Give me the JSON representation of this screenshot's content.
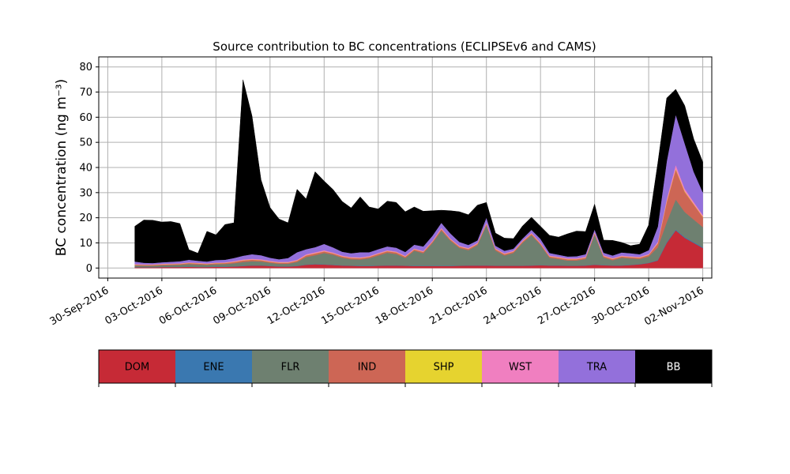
{
  "chart_data": {
    "type": "area",
    "stacked": true,
    "title": "Source contribution to BC concentrations (ECLIPSEv6 and CAMS)",
    "ylabel": "BC concentration (ng m⁻³)",
    "xlabel": "",
    "xlim": [
      "2016-09-29T12:00",
      "2016-11-02T12:00"
    ],
    "ylim": [
      -4,
      84
    ],
    "grid": true,
    "x_ticks": [
      "30-Sep-2016",
      "03-Oct-2016",
      "06-Oct-2016",
      "09-Oct-2016",
      "12-Oct-2016",
      "15-Oct-2016",
      "18-Oct-2016",
      "21-Oct-2016",
      "24-Oct-2016",
      "27-Oct-2016",
      "30-Oct-2016",
      "02-Nov-2016"
    ],
    "x_tick_dates": [
      "2016-09-30",
      "2016-10-03",
      "2016-10-06",
      "2016-10-09",
      "2016-10-12",
      "2016-10-15",
      "2016-10-18",
      "2016-10-21",
      "2016-10-24",
      "2016-10-27",
      "2016-10-30",
      "2016-11-02"
    ],
    "y_ticks": [
      0,
      10,
      20,
      30,
      40,
      50,
      60,
      70,
      80
    ],
    "legend": {
      "position": "bottom",
      "style": "colorbar",
      "labels": [
        "DOM",
        "ENE",
        "FLR",
        "IND",
        "SHP",
        "WST",
        "TRA",
        "BB"
      ],
      "label_colors": [
        "#000000",
        "#000000",
        "#000000",
        "#000000",
        "#000000",
        "#000000",
        "#000000",
        "#ffffff"
      ]
    },
    "x": [
      "2016-10-01T12:00",
      "2016-10-02T00:00",
      "2016-10-02T12:00",
      "2016-10-03T00:00",
      "2016-10-03T12:00",
      "2016-10-04T00:00",
      "2016-10-04T12:00",
      "2016-10-05T00:00",
      "2016-10-05T12:00",
      "2016-10-06T00:00",
      "2016-10-06T12:00",
      "2016-10-07T00:00",
      "2016-10-07T12:00",
      "2016-10-08T00:00",
      "2016-10-08T12:00",
      "2016-10-09T00:00",
      "2016-10-09T12:00",
      "2016-10-10T00:00",
      "2016-10-10T12:00",
      "2016-10-11T00:00",
      "2016-10-11T12:00",
      "2016-10-12T00:00",
      "2016-10-12T12:00",
      "2016-10-13T00:00",
      "2016-10-13T12:00",
      "2016-10-14T00:00",
      "2016-10-14T12:00",
      "2016-10-15T00:00",
      "2016-10-15T12:00",
      "2016-10-16T00:00",
      "2016-10-16T12:00",
      "2016-10-17T00:00",
      "2016-10-17T12:00",
      "2016-10-18T00:00",
      "2016-10-18T12:00",
      "2016-10-19T00:00",
      "2016-10-19T12:00",
      "2016-10-20T00:00",
      "2016-10-20T12:00",
      "2016-10-21T00:00",
      "2016-10-21T12:00",
      "2016-10-22T00:00",
      "2016-10-22T12:00",
      "2016-10-23T00:00",
      "2016-10-23T12:00",
      "2016-10-24T00:00",
      "2016-10-24T12:00",
      "2016-10-25T00:00",
      "2016-10-25T12:00",
      "2016-10-26T00:00",
      "2016-10-26T12:00",
      "2016-10-27T00:00",
      "2016-10-27T12:00",
      "2016-10-28T00:00",
      "2016-10-28T12:00",
      "2016-10-29T00:00",
      "2016-10-29T12:00",
      "2016-10-30T00:00",
      "2016-10-30T12:00",
      "2016-10-31T00:00",
      "2016-10-31T12:00",
      "2016-11-01T00:00",
      "2016-11-01T12:00",
      "2016-11-02T00:00"
    ],
    "series": [
      {
        "name": "DOM",
        "color": "#c62a36",
        "values": [
          0.3,
          0.3,
          0.3,
          0.4,
          0.4,
          0.4,
          0.5,
          0.4,
          0.4,
          0.5,
          0.5,
          0.6,
          0.8,
          1.0,
          1.0,
          0.8,
          0.6,
          0.6,
          0.8,
          1.3,
          1.5,
          1.4,
          1.2,
          1.0,
          0.9,
          0.8,
          0.8,
          0.9,
          1.0,
          1.0,
          0.9,
          0.8,
          0.8,
          0.8,
          0.8,
          0.8,
          0.9,
          1.0,
          1.0,
          1.0,
          0.9,
          0.9,
          0.9,
          0.9,
          1.0,
          1.1,
          1.0,
          1.0,
          0.9,
          0.9,
          1.0,
          1.3,
          1.1,
          1.0,
          1.0,
          1.2,
          1.5,
          2.0,
          3.0,
          10.0,
          15.0,
          12.0,
          10.0,
          8.0
        ]
      },
      {
        "name": "ENE",
        "color": "#3a78b0",
        "values": [
          0.1,
          0.1,
          0.1,
          0.1,
          0.1,
          0.1,
          0.1,
          0.1,
          0.1,
          0.1,
          0.1,
          0.1,
          0.1,
          0.1,
          0.1,
          0.1,
          0.1,
          0.1,
          0.1,
          0.1,
          0.1,
          0.1,
          0.1,
          0.1,
          0.1,
          0.1,
          0.1,
          0.1,
          0.1,
          0.1,
          0.1,
          0.1,
          0.1,
          0.1,
          0.1,
          0.1,
          0.1,
          0.1,
          0.1,
          0.1,
          0.1,
          0.1,
          0.1,
          0.1,
          0.1,
          0.1,
          0.1,
          0.1,
          0.1,
          0.1,
          0.1,
          0.1,
          0.1,
          0.1,
          0.1,
          0.1,
          0.1,
          0.1,
          0.2,
          0.3,
          0.3,
          0.3,
          0.3,
          0.3
        ]
      },
      {
        "name": "FLR",
        "color": "#6e8070",
        "values": [
          0.6,
          0.5,
          0.5,
          0.6,
          0.7,
          0.8,
          1.0,
          0.9,
          0.8,
          0.9,
          1.0,
          1.2,
          1.5,
          1.6,
          1.5,
          1.2,
          1.0,
          1.0,
          1.5,
          3.0,
          3.5,
          4.5,
          4.0,
          3.0,
          2.5,
          2.5,
          3.0,
          4.0,
          5.0,
          4.5,
          3.0,
          6.0,
          5.0,
          9.0,
          14.0,
          10.0,
          7.0,
          6.0,
          8.0,
          16.0,
          6.0,
          4.0,
          5.0,
          9.0,
          12.0,
          8.0,
          3.0,
          2.5,
          2.0,
          2.0,
          2.5,
          12.0,
          3.0,
          2.0,
          3.0,
          2.5,
          2.0,
          2.5,
          5.0,
          8.0,
          12.0,
          10.0,
          9.0,
          8.0
        ]
      },
      {
        "name": "IND",
        "color": "#cd6655",
        "values": [
          0.3,
          0.3,
          0.3,
          0.3,
          0.3,
          0.3,
          0.4,
          0.4,
          0.3,
          0.4,
          0.4,
          0.5,
          0.6,
          0.6,
          0.5,
          0.4,
          0.4,
          0.4,
          0.5,
          0.6,
          0.7,
          0.6,
          0.5,
          0.5,
          0.5,
          0.5,
          0.5,
          0.6,
          0.6,
          0.6,
          0.5,
          0.5,
          0.5,
          0.5,
          0.6,
          0.5,
          0.5,
          0.5,
          0.5,
          0.5,
          0.5,
          0.5,
          0.5,
          0.5,
          0.5,
          0.5,
          0.5,
          0.5,
          0.5,
          0.5,
          0.5,
          0.5,
          0.5,
          0.5,
          0.5,
          0.5,
          0.5,
          0.6,
          1.5,
          8.0,
          12.0,
          8.0,
          6.0,
          4.0
        ]
      },
      {
        "name": "SHP",
        "color": "#e6d32f",
        "values": [
          0.1,
          0.1,
          0.1,
          0.1,
          0.1,
          0.1,
          0.1,
          0.1,
          0.1,
          0.1,
          0.1,
          0.1,
          0.1,
          0.1,
          0.1,
          0.1,
          0.1,
          0.1,
          0.1,
          0.1,
          0.1,
          0.1,
          0.1,
          0.1,
          0.1,
          0.1,
          0.1,
          0.1,
          0.1,
          0.1,
          0.1,
          0.1,
          0.1,
          0.1,
          0.1,
          0.1,
          0.1,
          0.1,
          0.1,
          0.1,
          0.1,
          0.1,
          0.1,
          0.1,
          0.1,
          0.1,
          0.1,
          0.1,
          0.1,
          0.1,
          0.1,
          0.1,
          0.1,
          0.1,
          0.1,
          0.1,
          0.1,
          0.1,
          0.2,
          0.3,
          0.3,
          0.3,
          0.2,
          0.2
        ]
      },
      {
        "name": "WST",
        "color": "#f07fc0",
        "values": [
          0.2,
          0.2,
          0.2,
          0.2,
          0.2,
          0.2,
          0.2,
          0.2,
          0.2,
          0.2,
          0.2,
          0.3,
          0.3,
          0.3,
          0.3,
          0.3,
          0.3,
          0.3,
          0.3,
          0.4,
          0.4,
          0.4,
          0.3,
          0.3,
          0.3,
          0.3,
          0.3,
          0.3,
          0.3,
          0.3,
          0.3,
          0.3,
          0.3,
          0.3,
          0.4,
          0.3,
          0.3,
          0.3,
          0.3,
          0.4,
          0.3,
          0.3,
          0.3,
          0.3,
          0.3,
          0.3,
          0.3,
          0.3,
          0.3,
          0.3,
          0.3,
          0.4,
          0.3,
          0.3,
          0.3,
          0.3,
          0.3,
          0.3,
          0.5,
          1.0,
          1.5,
          1.0,
          0.8,
          0.7
        ]
      },
      {
        "name": "TRA",
        "color": "#9370db",
        "values": [
          1.0,
          0.6,
          0.5,
          0.6,
          0.7,
          0.8,
          1.0,
          0.8,
          0.7,
          1.0,
          1.0,
          1.2,
          1.5,
          1.8,
          1.6,
          1.2,
          1.0,
          1.5,
          3.0,
          2.0,
          2.0,
          2.5,
          2.0,
          1.5,
          1.5,
          2.0,
          1.5,
          1.5,
          1.5,
          1.5,
          1.5,
          1.5,
          1.8,
          2.0,
          2.0,
          2.0,
          1.5,
          1.2,
          1.0,
          2.0,
          1.0,
          1.0,
          0.8,
          0.8,
          1.2,
          1.5,
          1.0,
          0.8,
          0.7,
          0.8,
          1.0,
          1.0,
          1.0,
          1.0,
          1.2,
          1.2,
          1.0,
          1.5,
          6.0,
          15.0,
          20.0,
          18.0,
          12.0,
          9.0
        ]
      },
      {
        "name": "BB",
        "color": "#000000",
        "values": [
          14.0,
          17.0,
          17.0,
          16.0,
          16.0,
          15.0,
          4.0,
          3.0,
          12.0,
          10.0,
          14.0,
          14.0,
          70.0,
          55.0,
          30.0,
          20.0,
          16.0,
          14.0,
          25.0,
          20.0,
          30.0,
          25.0,
          23.0,
          20.0,
          18.0,
          22.0,
          18.0,
          16.0,
          18.0,
          18.0,
          16.0,
          15.0,
          14.0,
          10.0,
          5.0,
          9.0,
          12.0,
          12.0,
          14.0,
          6.0,
          5.0,
          5.0,
          4.0,
          5.0,
          5.0,
          5.0,
          7.0,
          7.0,
          9.0,
          10.0,
          9.0,
          10.0,
          5.0,
          6.0,
          4.0,
          3.0,
          4.0,
          10.0,
          25.0,
          25.0,
          10.0,
          15.0,
          13.0,
          12.0
        ]
      }
    ]
  }
}
